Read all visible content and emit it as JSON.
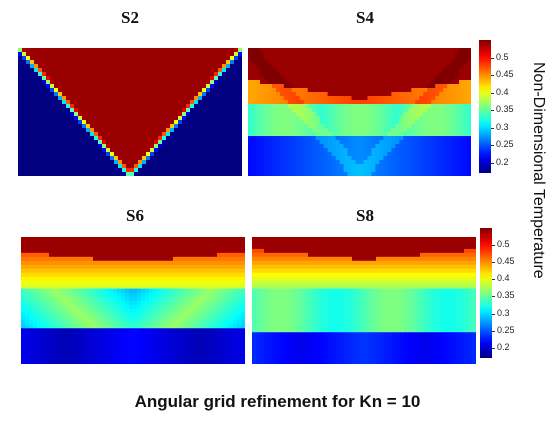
{
  "chart_data": [
    {
      "type": "heatmap",
      "title": "S2",
      "scheme": "S2"
    },
    {
      "type": "heatmap",
      "title": "S4",
      "scheme": "S4"
    },
    {
      "type": "heatmap",
      "title": "S6",
      "scheme": "S6"
    },
    {
      "type": "heatmap",
      "title": "S8",
      "scheme": "S8"
    }
  ],
  "colorbar": {
    "label": "Non-Dimensional Temperature",
    "range": [
      0.17,
      0.55
    ],
    "ticks": [
      "0.5",
      "0.45",
      "0.4",
      "0.35",
      "0.3",
      "0.25",
      "0.2"
    ],
    "tick_values": [
      0.5,
      0.45,
      0.4,
      0.35,
      0.3,
      0.25,
      0.2
    ],
    "colormap": "jet"
  },
  "caption": "Angular grid refinement for Kn = 10"
}
